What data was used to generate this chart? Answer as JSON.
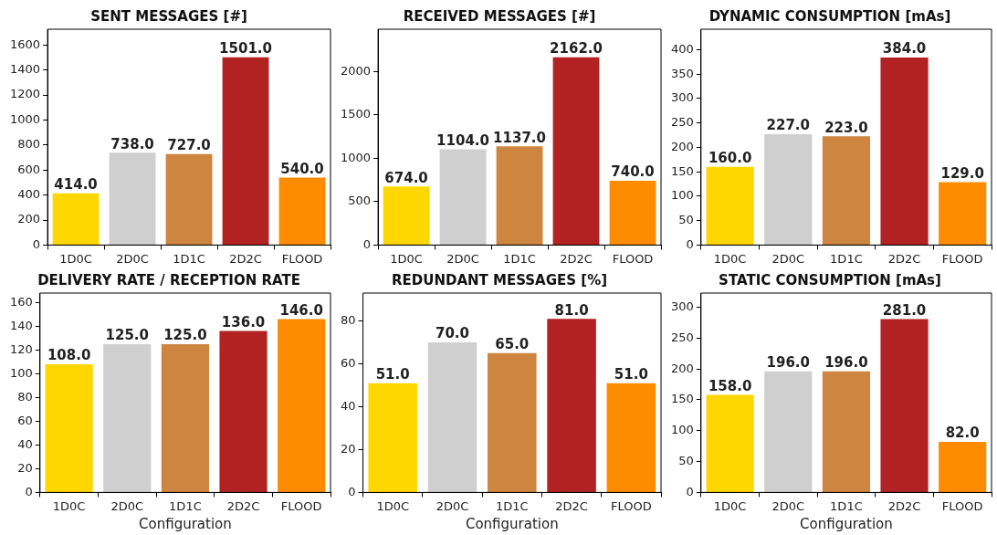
{
  "chart_data": [
    {
      "type": "bar",
      "title": "SENT MESSAGES [#]",
      "categories": [
        "1D0C",
        "2D0C",
        "1D1C",
        "2D2C",
        "FLOOD"
      ],
      "values": [
        414,
        738,
        727,
        1501,
        540
      ],
      "value_labels": [
        "414.0",
        "738.0",
        "727.0",
        "1501.0",
        "540.0"
      ],
      "colors": [
        "#ffd700",
        "#cfcfcf",
        "#cd853f",
        "#b22222",
        "#ff8c00"
      ],
      "ylim": [
        0,
        1726
      ],
      "yticks": [
        0,
        200,
        400,
        600,
        800,
        1000,
        1200,
        1400,
        1600
      ],
      "grid": false,
      "legend": false
    },
    {
      "type": "bar",
      "title": "RECEIVED MESSAGES [#]",
      "categories": [
        "1D0C",
        "2D0C",
        "1D1C",
        "2D2C",
        "FLOOD"
      ],
      "values": [
        674,
        1104,
        1137,
        2162,
        740
      ],
      "value_labels": [
        "674.0",
        "1104.0",
        "1137.0",
        "2162.0",
        "740.0"
      ],
      "colors": [
        "#ffd700",
        "#cfcfcf",
        "#cd853f",
        "#b22222",
        "#ff8c00"
      ],
      "ylim": [
        0,
        2486
      ],
      "yticks": [
        0,
        500,
        1000,
        1500,
        2000
      ],
      "grid": false,
      "legend": false
    },
    {
      "type": "bar",
      "title": "DYNAMIC CONSUMPTION [mAs]",
      "categories": [
        "1D0C",
        "2D0C",
        "1D1C",
        "2D2C",
        "FLOOD"
      ],
      "values": [
        160,
        227,
        223,
        384,
        129
      ],
      "value_labels": [
        "160.0",
        "227.0",
        "223.0",
        "384.0",
        "129.0"
      ],
      "colors": [
        "#ffd700",
        "#cfcfcf",
        "#cd853f",
        "#b22222",
        "#ff8c00"
      ],
      "ylim": [
        0,
        442
      ],
      "yticks": [
        0,
        50,
        100,
        150,
        200,
        250,
        300,
        350,
        400
      ],
      "grid": false,
      "legend": false
    },
    {
      "type": "bar",
      "title": "DELIVERY RATE / RECEPTION RATE",
      "xlabel": "Configuration",
      "categories": [
        "1D0C",
        "2D0C",
        "1D1C",
        "2D2C",
        "FLOOD"
      ],
      "values": [
        108,
        125,
        125,
        136,
        146
      ],
      "value_labels": [
        "108.0",
        "125.0",
        "125.0",
        "136.0",
        "146.0"
      ],
      "colors": [
        "#ffd700",
        "#cfcfcf",
        "#cd853f",
        "#b22222",
        "#ff8c00"
      ],
      "ylim": [
        0,
        168
      ],
      "yticks": [
        0,
        20,
        40,
        60,
        80,
        100,
        120,
        140,
        160
      ],
      "grid": false,
      "legend": false
    },
    {
      "type": "bar",
      "title": "REDUNDANT MESSAGES [%]",
      "xlabel": "Configuration",
      "categories": [
        "1D0C",
        "2D0C",
        "1D1C",
        "2D2C",
        "FLOOD"
      ],
      "values": [
        51,
        70,
        65,
        81,
        51
      ],
      "value_labels": [
        "51.0",
        "70.0",
        "65.0",
        "81.0",
        "51.0"
      ],
      "colors": [
        "#ffd700",
        "#cfcfcf",
        "#cd853f",
        "#b22222",
        "#ff8c00"
      ],
      "ylim": [
        0,
        93
      ],
      "yticks": [
        0,
        20,
        40,
        60,
        80
      ],
      "grid": false,
      "legend": false
    },
    {
      "type": "bar",
      "title": "STATIC CONSUMPTION [mAs]",
      "xlabel": "Configuration",
      "categories": [
        "1D0C",
        "2D0C",
        "1D1C",
        "2D2C",
        "FLOOD"
      ],
      "values": [
        158,
        196,
        196,
        281,
        82
      ],
      "value_labels": [
        "158.0",
        "196.0",
        "196.0",
        "281.0",
        "82.0"
      ],
      "colors": [
        "#ffd700",
        "#cfcfcf",
        "#cd853f",
        "#b22222",
        "#ff8c00"
      ],
      "ylim": [
        0,
        323
      ],
      "yticks": [
        0,
        50,
        100,
        150,
        200,
        250,
        300
      ],
      "grid": false,
      "legend": false
    }
  ]
}
